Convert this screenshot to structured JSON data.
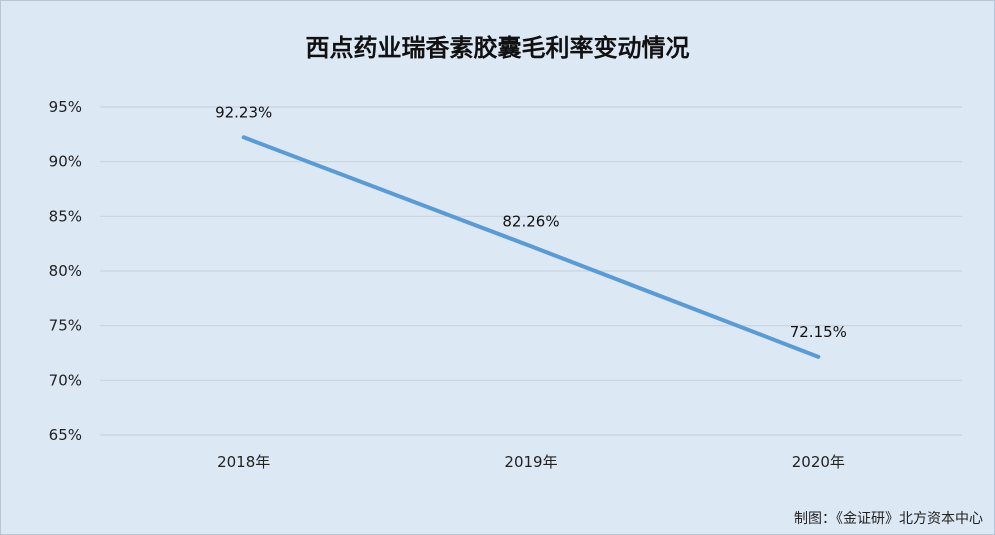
{
  "chart_data": {
    "type": "line",
    "title": "西点药业瑞香素胶囊毛利率变动情况",
    "categories": [
      "2018年",
      "2019年",
      "2020年"
    ],
    "series": [
      {
        "values": [
          92.23,
          82.26,
          72.15
        ],
        "color": "#5b9bd5"
      }
    ],
    "data_labels": [
      "92.23%",
      "82.26%",
      "72.15%"
    ],
    "ylim": [
      65,
      95
    ],
    "yticks": [
      95,
      90,
      85,
      80,
      75,
      70,
      65
    ],
    "ytick_labels": [
      "95%",
      "90%",
      "85%",
      "80%",
      "75%",
      "70%",
      "65%"
    ],
    "xlabel": "",
    "ylabel": "",
    "grid": true,
    "legend": "none"
  },
  "source": "制图：《金证研》北方资本中心",
  "colors": {
    "background": "#dde8f5",
    "gridline": "#c9d3de",
    "line": "#5b9bd5"
  }
}
